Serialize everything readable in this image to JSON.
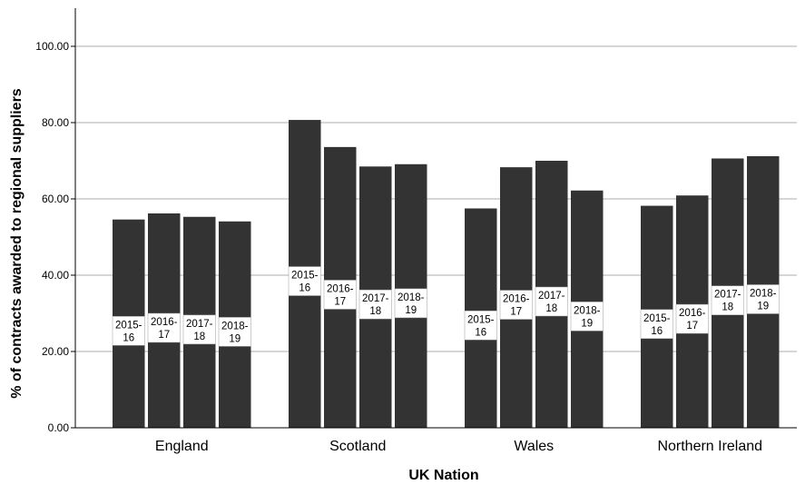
{
  "chart_data": {
    "type": "bar",
    "xlabel": "UK Nation",
    "ylabel": "% of contracts awarded to regional suppliers",
    "ylim": [
      0,
      110
    ],
    "yticks": [
      0,
      20,
      40,
      60,
      80,
      100
    ],
    "ytick_labels": [
      "0.00",
      "20.00",
      "40.00",
      "60.00",
      "80.00",
      "100.00"
    ],
    "grid": true,
    "categories": [
      "England",
      "Scotland",
      "Wales",
      "Northern Ireland"
    ],
    "series": [
      {
        "name": "2015-16",
        "values": [
          54.6,
          80.7,
          57.5,
          58.2
        ]
      },
      {
        "name": "2016-17",
        "values": [
          56.2,
          73.6,
          68.3,
          60.9
        ]
      },
      {
        "name": "2017-18",
        "values": [
          55.3,
          68.5,
          70.0,
          70.6
        ]
      },
      {
        "name": "2018-19",
        "values": [
          54.1,
          69.1,
          62.2,
          71.2
        ]
      }
    ],
    "bar_label_lines": {
      "2015-16": [
        "2015-",
        "16"
      ],
      "2016-17": [
        "2016-",
        "17"
      ],
      "2017-18": [
        "2017-",
        "18"
      ],
      "2018-19": [
        "2018-",
        "19"
      ]
    },
    "colors": {
      "bar": "#333333",
      "grid": "#bdbdbd",
      "axis": "#000000",
      "label_box": "#ffffff"
    }
  }
}
